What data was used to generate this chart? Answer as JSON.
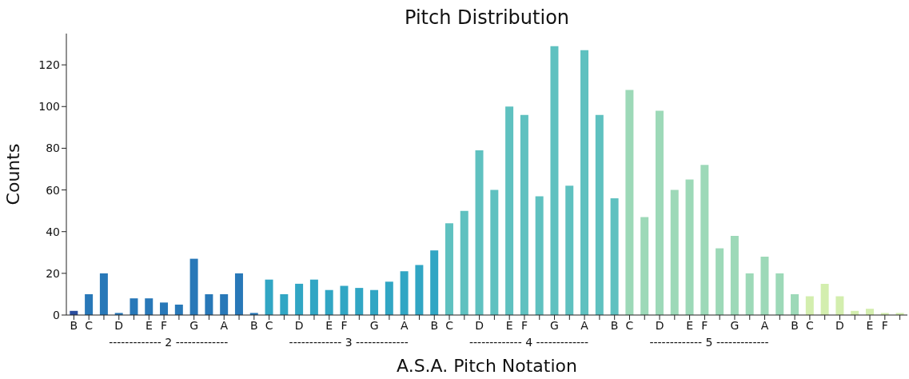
{
  "chart_data": {
    "type": "bar",
    "title": "Pitch Distribution",
    "xlabel": "A.S.A. Pitch Notation",
    "ylabel": "Counts",
    "categories": [
      "B",
      "C",
      null,
      "D",
      null,
      "E",
      "F",
      null,
      "G",
      null,
      "A",
      null,
      "B",
      "C",
      null,
      "D",
      null,
      "E",
      "F",
      null,
      "G",
      null,
      "A",
      null,
      "B",
      "C",
      null,
      "D",
      null,
      "E",
      "F",
      null,
      "G",
      null,
      "A",
      null,
      "B",
      "C",
      null,
      "D",
      null,
      "E",
      "F",
      null,
      "G",
      null,
      "A",
      null,
      "B",
      "C",
      null,
      "D",
      null,
      "E",
      "F",
      null
    ],
    "values": [
      2,
      10,
      20,
      1,
      8,
      8,
      6,
      5,
      27,
      10,
      10,
      20,
      1,
      17,
      10,
      15,
      17,
      12,
      14,
      13,
      12,
      16,
      21,
      24,
      31,
      44,
      50,
      79,
      60,
      100,
      96,
      57,
      129,
      62,
      127,
      96,
      56,
      108,
      47,
      98,
      60,
      65,
      72,
      32,
      38,
      20,
      28,
      20,
      10,
      9,
      15,
      9,
      2,
      3,
      1,
      1
    ],
    "colors": [
      "#2a4d9e",
      "#2878b8",
      "#2878b8",
      "#2878b8",
      "#2878b8",
      "#2878b8",
      "#2878b8",
      "#2878b8",
      "#2878b8",
      "#2878b8",
      "#2878b8",
      "#2878b8",
      "#2878b8",
      "#31a6c4",
      "#31a6c4",
      "#31a6c4",
      "#31a6c4",
      "#31a6c4",
      "#31a6c4",
      "#31a6c4",
      "#31a6c4",
      "#31a6c4",
      "#31a6c4",
      "#31a6c4",
      "#31a6c4",
      "#5fc1c0",
      "#5fc1c0",
      "#5fc1c0",
      "#5fc1c0",
      "#5fc1c0",
      "#5fc1c0",
      "#5fc1c0",
      "#5fc1c0",
      "#5fc1c0",
      "#5fc1c0",
      "#5fc1c0",
      "#5fc1c0",
      "#9dd9b8",
      "#9dd9b8",
      "#9dd9b8",
      "#9dd9b8",
      "#9dd9b8",
      "#9dd9b8",
      "#9dd9b8",
      "#9dd9b8",
      "#9dd9b8",
      "#9dd9b8",
      "#9dd9b8",
      "#9dd9b8",
      "#d3eeae",
      "#d3eeae",
      "#d3eeae",
      "#d3eeae",
      "#d3eeae",
      "#d3eeae",
      "#d3eeae"
    ],
    "ylim": [
      0,
      135
    ],
    "yticks": [
      0,
      20,
      40,
      60,
      80,
      100,
      120
    ],
    "grid": false,
    "legend": false,
    "annotations": [
      "------------- 2 -------------",
      "------------- 3 -------------",
      "------------- 4 -------------",
      "------------- 5 -------------"
    ]
  }
}
